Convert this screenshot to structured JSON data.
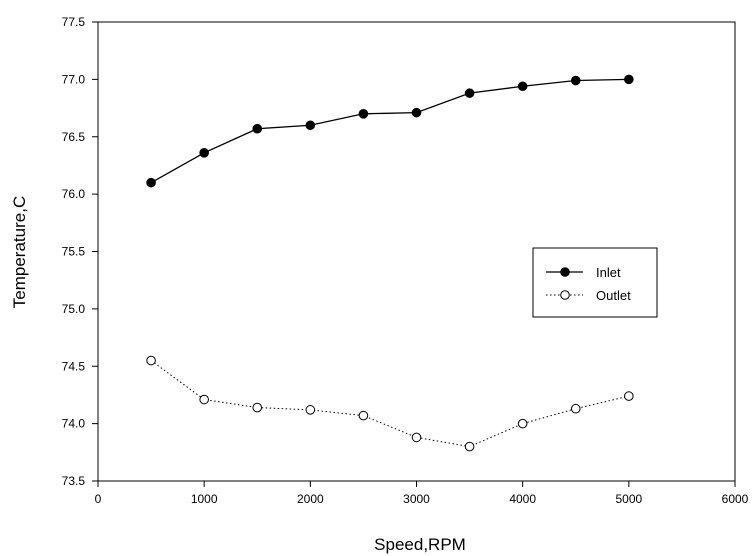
{
  "chart_data": {
    "type": "line",
    "xlabel": "Speed,RPM",
    "ylabel": "Temperature,C",
    "xlim": [
      0,
      6000
    ],
    "ylim": [
      73.5,
      77.5
    ],
    "xticks": [
      "0",
      "1000",
      "2000",
      "3000",
      "4000",
      "5000",
      "6000"
    ],
    "yticks": [
      "73.5",
      "74.0",
      "74.5",
      "75.0",
      "75.5",
      "76.0",
      "76.5",
      "77.0",
      "77.5"
    ],
    "grid": false,
    "legend_position": "center-right",
    "x": [
      500,
      1000,
      1500,
      2000,
      2500,
      3000,
      3500,
      4000,
      4500,
      5000
    ],
    "series": [
      {
        "name": "Inlet",
        "marker": "filled-circle",
        "line": "solid",
        "values": [
          76.1,
          76.36,
          76.57,
          76.6,
          76.7,
          76.71,
          76.88,
          76.94,
          76.99,
          77.0
        ]
      },
      {
        "name": "Outlet",
        "marker": "open-circle",
        "line": "dotted",
        "values": [
          74.55,
          74.21,
          74.14,
          74.12,
          74.07,
          73.88,
          73.8,
          74.0,
          74.13,
          74.24
        ]
      }
    ]
  }
}
